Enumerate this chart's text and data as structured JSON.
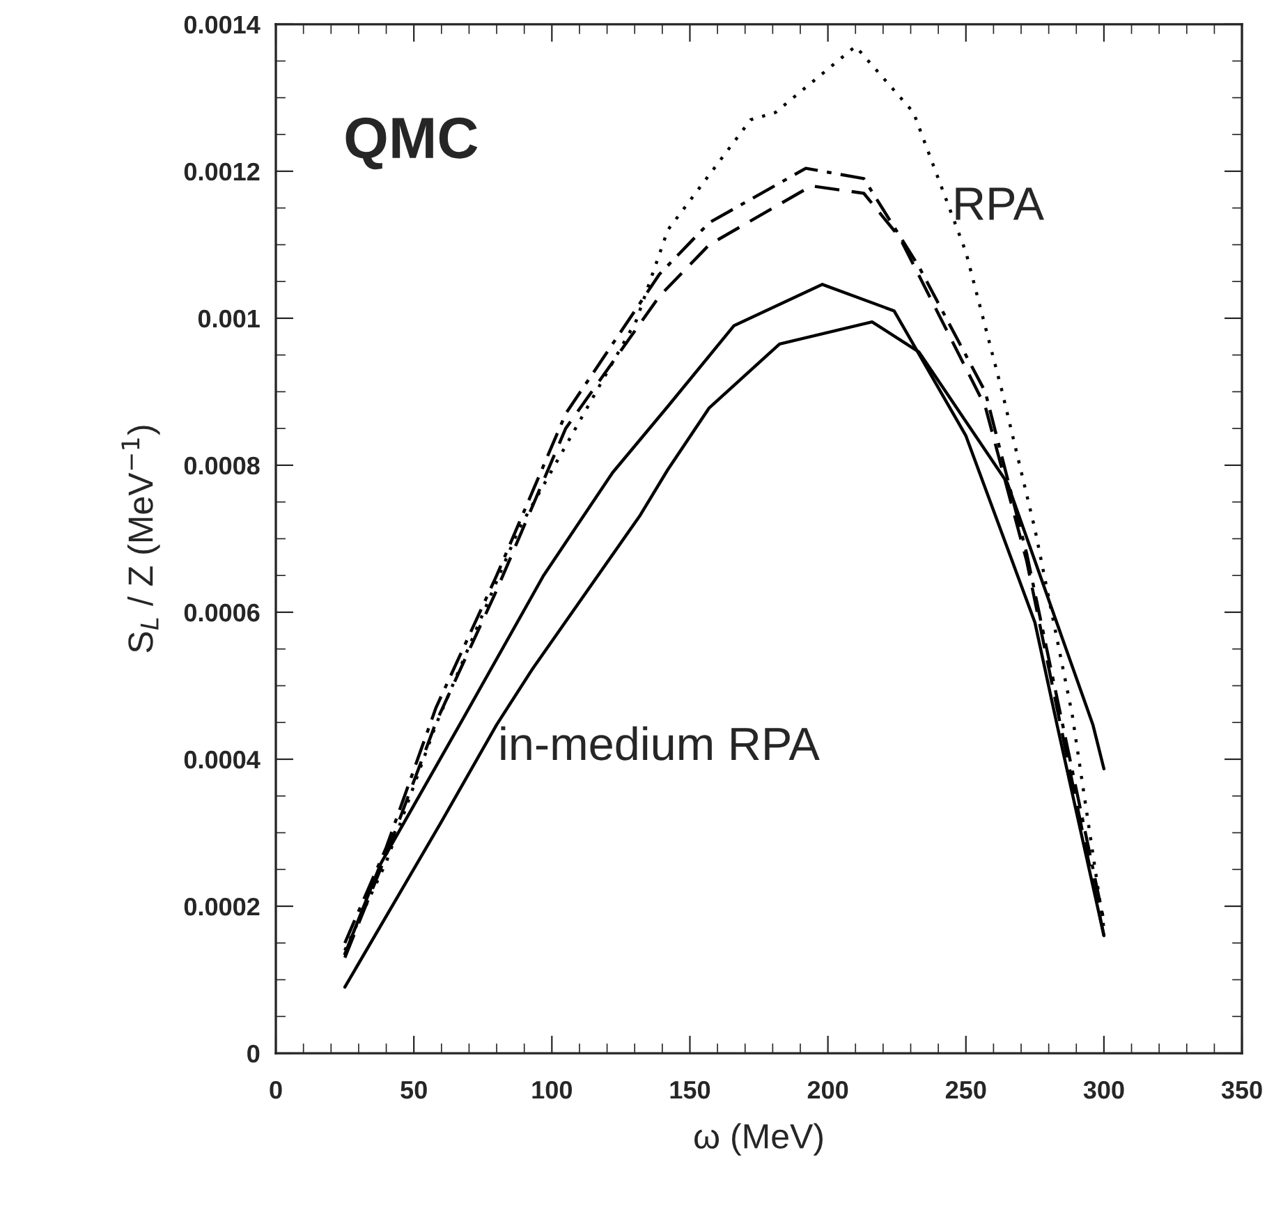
{
  "chart_data": {
    "type": "line",
    "xlabel": "ω (MeV)",
    "ylabel": "S$_{L}$ / Z (MeV$^{−1}$)",
    "annotations": [
      "QMC",
      "RPA",
      "in-medium RPA"
    ],
    "xlim": [
      0,
      350
    ],
    "xticks": [
      0,
      50,
      100,
      150,
      200,
      250,
      300,
      350
    ],
    "ylim": [
      0,
      0.0014
    ],
    "yticks": [
      0,
      0.0002,
      0.0004,
      0.0006,
      0.0008,
      0.001,
      0.0012,
      0.0014
    ],
    "grid": false,
    "legend": false,
    "marker": "none",
    "series": [
      {
        "color": "#000000",
        "line_style": "dotted",
        "x": [
          25,
          40,
          58,
          88,
          130.6,
          142,
          172,
          181,
          210,
          231,
          250,
          263,
          275,
          288.5,
          300
        ],
        "values": [
          0.00014,
          0.00026,
          0.000447,
          0.000713,
          0.000997,
          0.00112,
          0.00127,
          0.00128,
          0.00137,
          0.00128,
          0.00109,
          0.000902,
          0.000713,
          0.000461,
          0.00017
        ]
      },
      {
        "color": "#000000",
        "line_style": "dashdot",
        "x": [
          25,
          40,
          58,
          80,
          105,
          139,
          157,
          192,
          213,
          233,
          257,
          272,
          300
        ],
        "values": [
          0.00015,
          0.00028,
          0.00047,
          0.00065,
          0.00087,
          0.00106,
          0.00113,
          0.001204,
          0.00119,
          0.00107,
          0.0009,
          0.00068,
          0.00018
        ]
      },
      {
        "color": "#000000",
        "line_style": "dashed",
        "x": [
          25,
          40,
          58,
          80,
          105,
          139,
          157,
          194,
          213,
          226,
          257,
          272,
          300
        ],
        "values": [
          0.00013,
          0.00027,
          0.00045,
          0.00063,
          0.00085,
          0.00103,
          0.0011,
          0.00118,
          0.00117,
          0.00111,
          0.00088,
          0.00067,
          0.00016
        ]
      },
      {
        "color": "#000000",
        "line_style": "solid",
        "x": [
          25,
          38,
          66.6,
          97,
          122,
          142,
          166,
          198,
          224,
          250,
          275,
          283,
          300
        ],
        "values": [
          0.000135,
          0.000258,
          0.000447,
          0.00065,
          0.00079,
          0.00088,
          0.00099,
          0.001046,
          0.00101,
          0.00084,
          0.000586,
          0.000447,
          0.00016
        ]
      },
      {
        "color": "#000000",
        "line_style": "solid",
        "x": [
          25,
          60,
          80,
          93,
          132,
          142,
          157,
          182.5,
          216,
          233,
          265,
          296,
          300
        ],
        "values": [
          9e-05,
          0.000315,
          0.000447,
          0.000523,
          0.000732,
          0.000794,
          0.000878,
          0.000965,
          0.000995,
          0.000954,
          0.000776,
          0.000447,
          0.000387
        ]
      }
    ]
  }
}
